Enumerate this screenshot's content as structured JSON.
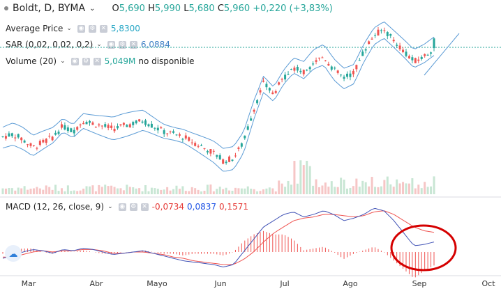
{
  "header": {
    "symbol": "Boldt, D, BYMA",
    "open_label": "O",
    "open": "5,690",
    "high_label": "H",
    "high": "5,990",
    "low_label": "L",
    "low": "5,680",
    "close_label": "C",
    "close": "5,960",
    "change": "+0,220 (+3,83%)"
  },
  "indicators": {
    "avg_label": "Average Price",
    "avg_value": "5,8300",
    "sar_label": "SAR (0,02, 0,02, 0,2)",
    "sar_value": "6,0884",
    "vol_label": "Volume (20)",
    "vol_value": "5,049M",
    "vol_extra": "no disponible",
    "macd_label": "MACD (12, 26, close, 9)",
    "macd_hist": "-0,0734",
    "macd_line": "0,0837",
    "macd_signal": "0,1571"
  },
  "colors": {
    "up": "#26a69a",
    "down": "#ef5350",
    "bb": "#5b9bd5",
    "macd": "#3f51b5",
    "signal": "#ef5350",
    "circle": "#d50000",
    "upvol": "#c8e6d4",
    "downvol": "#f6c6c6"
  },
  "chart_data": {
    "type": "candlestick",
    "title": "Boldt, D, BYMA",
    "x_ticks": [
      "Mar",
      "Abr",
      "Mayo",
      "Jun",
      "Jul",
      "Ago",
      "Sep",
      "Oct"
    ],
    "y_last": 5.96,
    "series": [
      {
        "name": "price",
        "values": [
          4.3,
          4.35,
          4.25,
          4.1,
          4.2,
          4.3,
          4.5,
          4.4,
          4.6,
          4.55,
          4.5,
          4.45,
          4.5,
          4.55,
          4.6,
          4.5,
          4.4,
          4.35,
          4.3,
          4.2,
          4.1,
          4.0,
          3.85,
          3.9,
          4.2,
          4.8,
          5.3,
          5.1,
          5.4,
          5.6,
          5.5,
          5.7,
          5.8,
          5.55,
          5.4,
          5.5,
          5.9,
          6.2,
          6.3,
          6.1,
          5.9,
          5.7,
          5.8,
          5.96
        ]
      },
      {
        "name": "MACD",
        "values": [
          -0.05,
          -0.03,
          0.0,
          0.02,
          0.01,
          -0.01,
          0.02,
          0.01,
          0.03,
          0.02,
          0.0,
          -0.02,
          -0.01,
          0.0,
          0.01,
          -0.01,
          -0.03,
          -0.05,
          -0.07,
          -0.08,
          -0.09,
          -0.1,
          -0.12,
          -0.1,
          0.0,
          0.1,
          0.2,
          0.25,
          0.3,
          0.32,
          0.28,
          0.3,
          0.33,
          0.3,
          0.25,
          0.27,
          0.3,
          0.35,
          0.33,
          0.25,
          0.15,
          0.05,
          0.06,
          0.08
        ]
      },
      {
        "name": "Signal",
        "values": [
          -0.04,
          -0.04,
          -0.02,
          0.0,
          0.01,
          0.0,
          0.01,
          0.01,
          0.02,
          0.02,
          0.01,
          -0.01,
          -0.01,
          0.0,
          0.0,
          -0.01,
          -0.02,
          -0.04,
          -0.05,
          -0.07,
          -0.08,
          -0.09,
          -0.1,
          -0.1,
          -0.06,
          0.0,
          0.08,
          0.15,
          0.2,
          0.25,
          0.27,
          0.28,
          0.3,
          0.3,
          0.29,
          0.28,
          0.29,
          0.32,
          0.33,
          0.3,
          0.25,
          0.2,
          0.17,
          0.157
        ]
      }
    ]
  }
}
